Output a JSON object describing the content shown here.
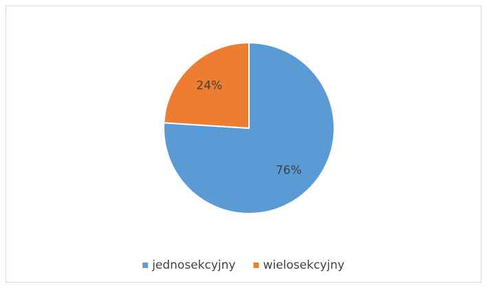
{
  "chart_data": {
    "type": "pie",
    "categories": [
      "jednosekcyjny",
      "wielosekcyjny"
    ],
    "values": [
      76,
      24
    ],
    "value_labels": [
      "76%",
      "24%"
    ],
    "colors": [
      "#5b9bd5",
      "#ed7d31"
    ],
    "legend": "bottom"
  }
}
